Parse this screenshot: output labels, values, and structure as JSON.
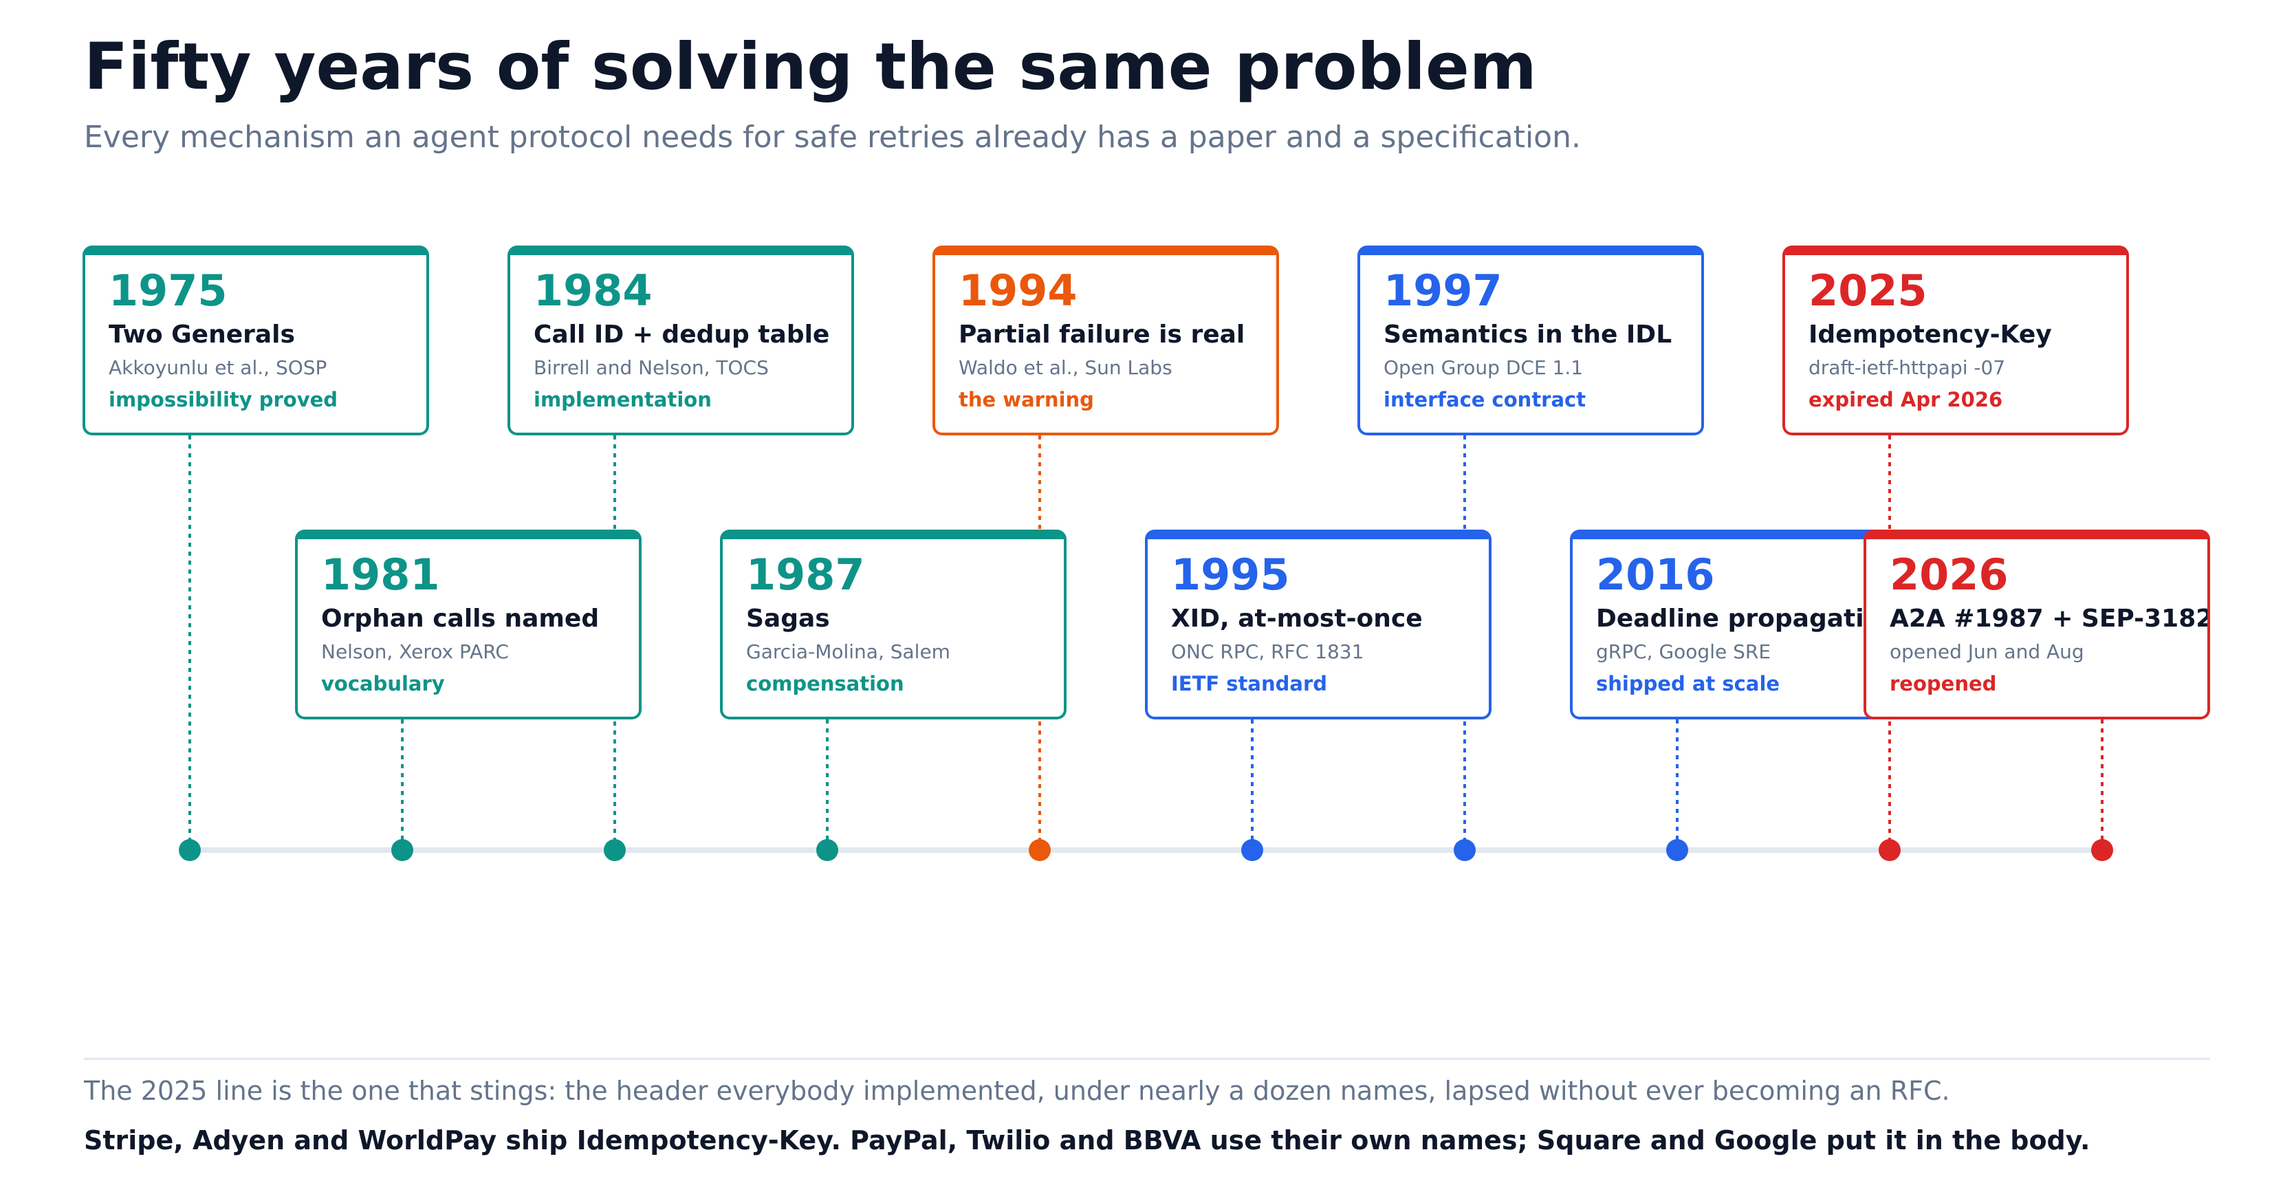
{
  "header": {
    "title": "Fifty years of solving the same problem",
    "subtitle": "Every mechanism an agent protocol needs for safe retries already has a paper and a specification."
  },
  "colors": {
    "teal": "#0d9488",
    "orange": "#ea580c",
    "blue": "#2563eb",
    "red": "#dc2626",
    "axis": "#e2e8f0"
  },
  "events": [
    {
      "year": "1975",
      "title": "Two Generals",
      "source": "Akkoyunlu et al., SOSP",
      "tag": "impossibility proved",
      "color": "teal",
      "row": "top"
    },
    {
      "year": "1981",
      "title": "Orphan calls named",
      "source": "Nelson, Xerox PARC",
      "tag": "vocabulary",
      "color": "teal",
      "row": "bottom"
    },
    {
      "year": "1984",
      "title": "Call ID + dedup table",
      "source": "Birrell and Nelson, TOCS",
      "tag": "implementation",
      "color": "teal",
      "row": "top"
    },
    {
      "year": "1987",
      "title": "Sagas",
      "source": "Garcia-Molina, Salem",
      "tag": "compensation",
      "color": "teal",
      "row": "bottom"
    },
    {
      "year": "1994",
      "title": "Partial failure is real",
      "source": "Waldo et al., Sun Labs",
      "tag": "the warning",
      "color": "orange",
      "row": "top"
    },
    {
      "year": "1995",
      "title": "XID, at-most-once",
      "source": "ONC RPC, RFC 1831",
      "tag": "IETF standard",
      "color": "blue",
      "row": "bottom"
    },
    {
      "year": "1997",
      "title": "Semantics in the IDL",
      "source": "Open Group DCE 1.1",
      "tag": "interface contract",
      "color": "blue",
      "row": "top"
    },
    {
      "year": "2016",
      "title": "Deadline propagation",
      "source": "gRPC, Google SRE",
      "tag": "shipped at scale",
      "color": "blue",
      "row": "bottom"
    },
    {
      "year": "2025",
      "title": "Idempotency-Key",
      "source": "draft-ietf-httpapi -07",
      "tag": "expired Apr 2026",
      "color": "red",
      "row": "top"
    },
    {
      "year": "2026",
      "title": "A2A #1987 + SEP-3182",
      "source": "opened Jun and Aug",
      "tag": "reopened",
      "color": "red",
      "row": "bottom"
    }
  ],
  "footer": {
    "line1": "The 2025 line is the one that stings: the header everybody implemented, under nearly a dozen names, lapsed without ever becoming an RFC.",
    "line2": "Stripe, Adyen and WorldPay ship Idempotency-Key. PayPal, Twilio and BBVA use their own names; Square and Google put it in the body."
  }
}
